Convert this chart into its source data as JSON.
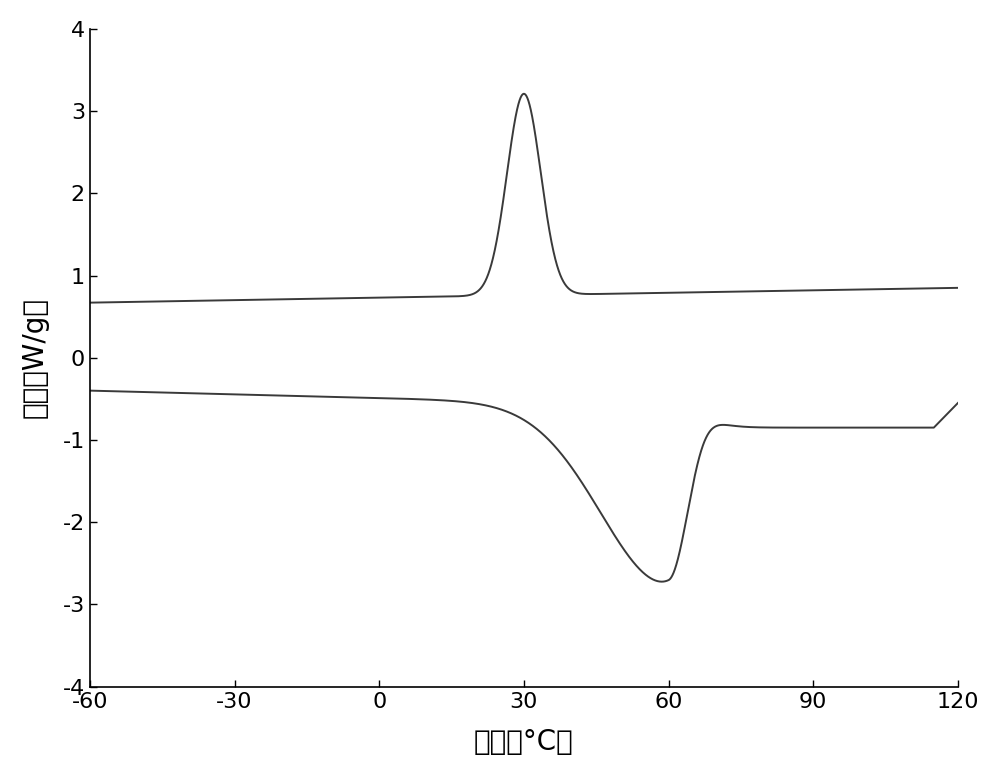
{
  "xlim": [
    -60,
    120
  ],
  "ylim": [
    -4,
    4
  ],
  "xticks": [
    -60,
    -30,
    0,
    30,
    60,
    90,
    120
  ],
  "yticks": [
    -4,
    -3,
    -2,
    -1,
    0,
    1,
    2,
    3,
    4
  ],
  "xlabel": "温度（°C）",
  "ylabel": "热流（W/g）",
  "line_color": "#3a3a3a",
  "line_width": 1.4,
  "background_color": "#ffffff",
  "xlabel_fontsize": 20,
  "ylabel_fontsize": 20,
  "tick_fontsize": 16
}
